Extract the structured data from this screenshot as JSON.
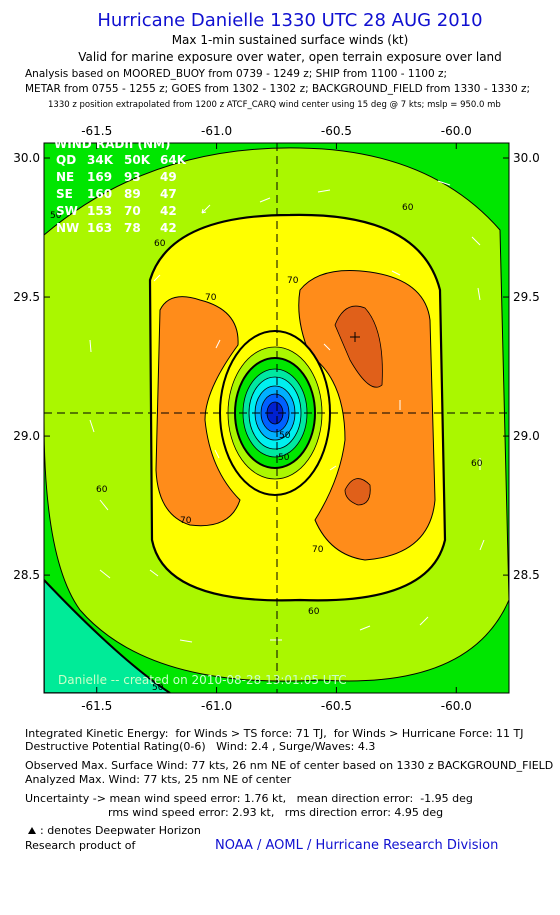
{
  "header": {
    "title": "Hurricane Danielle 1330 UTC 28 AUG 2010",
    "subtitle": "Max 1-min sustained surface winds (kt)",
    "validity": "Valid for marine exposure over water, open terrain exposure over land",
    "analysis_lines": [
      "Analysis based on MOORED_BUOY from 0739 - 1249 z; SHIP from 1100 - 1100 z;",
      "METAR from 0755 - 1255 z; GOES from 1302 - 1302 z; BACKGROUND_FIELD from 1330 - 1330 z;"
    ],
    "position_note": "1330 z position extrapolated from 1200 z ATCF_CARQ wind center using 15 deg @ 7 kts; mslp = 950.0 mb"
  },
  "map": {
    "xlim": [
      -61.72,
      -59.78
    ],
    "ylim": [
      28.076,
      30.054
    ],
    "xticks": [
      {
        "value": -61.5,
        "label": "-61.5"
      },
      {
        "value": -61.0,
        "label": "-61.0"
      },
      {
        "value": -60.5,
        "label": "-60.5"
      },
      {
        "value": -60.0,
        "label": "-60.0"
      }
    ],
    "yticks": [
      {
        "value": 28.5,
        "label": "28.5"
      },
      {
        "value": 29.0,
        "label": "29.0"
      },
      {
        "value": 29.5,
        "label": "29.5"
      },
      {
        "value": 30.0,
        "label": "30.0"
      }
    ],
    "wind_radii": {
      "title": "WIND RADII (NM)",
      "rows": [
        [
          "QD",
          "34K",
          "50K",
          "64K"
        ],
        [
          "NE",
          "169",
          "93",
          "49"
        ],
        [
          "SE",
          "160",
          "89",
          "47"
        ],
        [
          "SW",
          "153",
          "70",
          "42"
        ],
        [
          "NW",
          "163",
          "78",
          "42"
        ]
      ]
    },
    "contour_labels": [
      "60",
      "60",
      "70",
      "70",
      "70",
      "60",
      "70",
      "60",
      "50",
      "50",
      "50",
      "60",
      "50"
    ],
    "watermark": "Danielle -- created on 2010-08-28 13:01:05 UTC"
  },
  "footer": {
    "ike": "Integrated Kinetic Energy:  for Winds > TS force: 71 TJ,  for Winds > Hurricane Force: 11 TJ",
    "dpr": "Destructive Potential Rating(0-6)   Wind: 2.4 , Surge/Waves: 4.3",
    "observed": "Observed Max. Surface Wind: 77 kts, 26 nm NE of center based on 1330 z BACKGROUND_FIELD",
    "analyzed": "Analyzed Max. Wind: 77 kts, 25 nm NE of center",
    "uncertainty1": "Uncertainty -> mean wind speed error: 1.76 kt,   mean direction error:  -1.95 deg",
    "uncertainty2": "rms wind speed error: 2.93 kt,   rms direction error: 4.95 deg",
    "legend": ": denotes Deepwater Horizon",
    "research": "Research product of",
    "org": "NOAA / AOML / Hurricane Research Division"
  }
}
